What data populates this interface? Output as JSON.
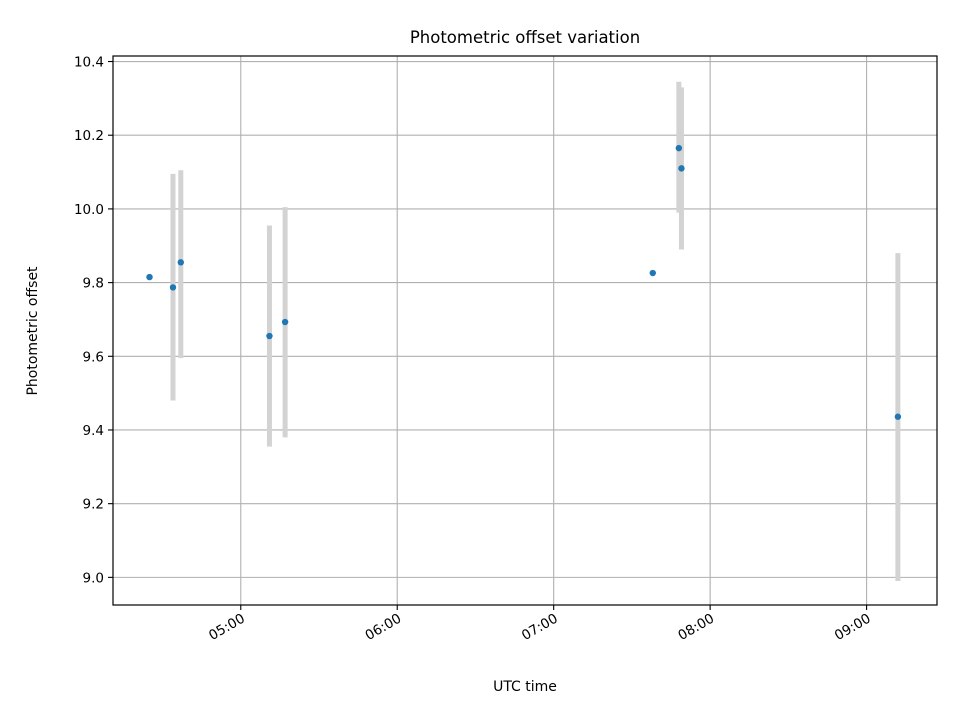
{
  "chart_data": {
    "type": "scatter",
    "title": "Photometric offset variation",
    "xlabel": "UTC time",
    "ylabel": "Photometric offset",
    "x_axis": {
      "type": "time",
      "range": [
        "04:11",
        "09:27"
      ],
      "ticks": [
        "05:00",
        "06:00",
        "07:00",
        "08:00",
        "09:00"
      ]
    },
    "y_axis": {
      "range": [
        8.925,
        10.415
      ],
      "ticks": [
        "9.0",
        "9.2",
        "9.4",
        "9.6",
        "9.8",
        "10.0",
        "10.2",
        "10.4"
      ]
    },
    "grid": true,
    "colors": {
      "point": "#1f77b4",
      "errorbar": "#d3d3d3",
      "grid": "#b0b0b0"
    },
    "points": [
      {
        "x": "04:25",
        "y": 9.815,
        "err_low": null,
        "err_high": null
      },
      {
        "x": "04:34",
        "y": 9.787,
        "err_low": 9.48,
        "err_high": 10.095
      },
      {
        "x": "04:37",
        "y": 9.855,
        "err_low": 9.595,
        "err_high": 10.105
      },
      {
        "x": "05:11",
        "y": 9.655,
        "err_low": 9.355,
        "err_high": 9.955
      },
      {
        "x": "05:17",
        "y": 9.693,
        "err_low": 9.38,
        "err_high": 10.005
      },
      {
        "x": "07:38",
        "y": 9.826,
        "err_low": null,
        "err_high": null
      },
      {
        "x": "07:48",
        "y": 10.165,
        "err_low": 9.99,
        "err_high": 10.345
      },
      {
        "x": "07:49",
        "y": 10.11,
        "err_low": 9.89,
        "err_high": 10.33
      },
      {
        "x": "09:12",
        "y": 9.436,
        "err_low": 8.99,
        "err_high": 9.88
      }
    ]
  }
}
